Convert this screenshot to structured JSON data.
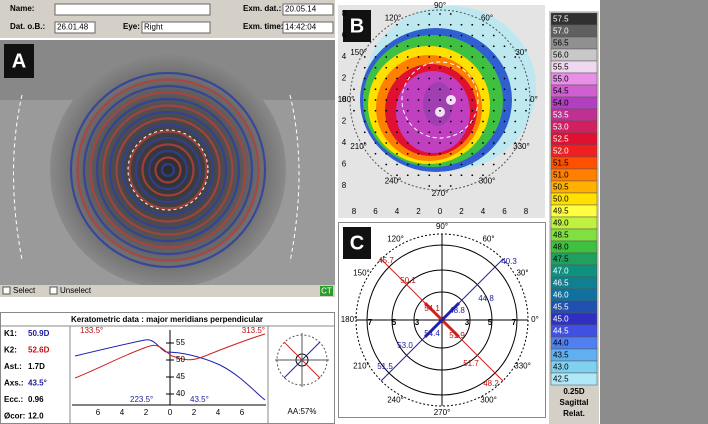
{
  "header": {
    "name_label": "Name:",
    "dob_label": "Dat. o.B.:",
    "dob": "26.01.48",
    "eye_label": "Eye:",
    "eye": "Right",
    "exam_date_label": "Exm. dat.:",
    "exam_date": "20.05.14",
    "exam_time_label": "Exm. time:",
    "exam_time": "14:42:04"
  },
  "image_panel": {
    "label": "A",
    "select": "Select",
    "unselect": "Unselect",
    "badge": "CT"
  },
  "keratometric": {
    "title": "Keratometric data : major meridians perpendicular",
    "rows": [
      {
        "label": "K1:",
        "value": "50.9D",
        "color": "#1a1aa0"
      },
      {
        "label": "K2:",
        "value": "52.6D",
        "color": "#c01010"
      },
      {
        "label": "Ast.:",
        "value": "1.7D",
        "color": "#000000"
      },
      {
        "label": "Axs.:",
        "value": "43.5°",
        "color": "#1a1aa0"
      },
      {
        "label": "Ecc.:",
        "value": "0.96",
        "color": "#000000"
      },
      {
        "label": "Øcor:",
        "value": "12.0",
        "color": "#000000"
      }
    ],
    "angle_top_left": "133.5°",
    "angle_top_right": "313.5°",
    "angle_bottom_left": "223.5°",
    "angle_bottom_right": "43.5°",
    "y_ticks": [
      "55",
      "50",
      "45",
      "40"
    ],
    "x_ticks": [
      "6",
      "4",
      "2",
      "0",
      "2",
      "4",
      "6"
    ],
    "aa": "AA:57%"
  },
  "map_b": {
    "label": "B",
    "axis_ticks": [
      "8",
      "6",
      "4",
      "2",
      "0",
      "2",
      "4",
      "6",
      "8"
    ],
    "angles": [
      "0°",
      "30°",
      "60°",
      "90°",
      "120°",
      "150°",
      "180°",
      "210°",
      "240°",
      "270°",
      "300°",
      "330°"
    ]
  },
  "map_c": {
    "label": "C",
    "angles": [
      "0°",
      "30°",
      "60°",
      "90°",
      "120°",
      "150°",
      "180°",
      "210°",
      "240°",
      "270°",
      "300°",
      "330°"
    ],
    "ring_labels": [
      "7",
      "5",
      "3",
      "3",
      "5",
      "7"
    ],
    "values": [
      {
        "text": "45.7",
        "color": "#c01010"
      },
      {
        "text": "50.1",
        "color": "#c01010"
      },
      {
        "text": "54.1",
        "color": "#c01010"
      },
      {
        "text": "48.8",
        "color": "#1a1aa0"
      },
      {
        "text": "44.8",
        "color": "#1a1aa0"
      },
      {
        "text": "40.3",
        "color": "#1a1aa0"
      },
      {
        "text": "54.4",
        "color": "#1a1aa0"
      },
      {
        "text": "51.9",
        "color": "#c01010"
      },
      {
        "text": "53.0",
        "color": "#1a1aa0"
      },
      {
        "text": "51.5",
        "color": "#1a1aa0"
      },
      {
        "text": "51.7",
        "color": "#c01010"
      },
      {
        "text": "48.2",
        "color": "#c01010"
      }
    ]
  },
  "scale": {
    "entries": [
      {
        "label": "57.5",
        "color": "#303030"
      },
      {
        "label": "57.0",
        "color": "#606060"
      },
      {
        "label": "56.5",
        "color": "#909090"
      },
      {
        "label": "56.0",
        "color": "#c8c8c8"
      },
      {
        "label": "55.5",
        "color": "#f0d8f0"
      },
      {
        "label": "55.0",
        "color": "#e890e8"
      },
      {
        "label": "54.5",
        "color": "#d060d0"
      },
      {
        "label": "54.0",
        "color": "#b040c0"
      },
      {
        "label": "53.5",
        "color": "#c03090"
      },
      {
        "label": "53.0",
        "color": "#d02060"
      },
      {
        "label": "52.5",
        "color": "#e01030"
      },
      {
        "label": "52.0",
        "color": "#f02020"
      },
      {
        "label": "51.5",
        "color": "#ff5000"
      },
      {
        "label": "51.0",
        "color": "#ff8000"
      },
      {
        "label": "50.5",
        "color": "#ffb000"
      },
      {
        "label": "50.0",
        "color": "#ffe000"
      },
      {
        "label": "49.5",
        "color": "#ffff40"
      },
      {
        "label": "49.0",
        "color": "#c0f040"
      },
      {
        "label": "48.5",
        "color": "#80e040"
      },
      {
        "label": "48.0",
        "color": "#40c040"
      },
      {
        "label": "47.5",
        "color": "#20a060"
      },
      {
        "label": "47.0",
        "color": "#109080"
      },
      {
        "label": "46.5",
        "color": "#108090"
      },
      {
        "label": "46.0",
        "color": "#1070a0"
      },
      {
        "label": "45.5",
        "color": "#2050b0"
      },
      {
        "label": "45.0",
        "color": "#3030c0"
      },
      {
        "label": "44.5",
        "color": "#4050e0"
      },
      {
        "label": "44.0",
        "color": "#5080f0"
      },
      {
        "label": "43.5",
        "color": "#60b0f0"
      },
      {
        "label": "43.0",
        "color": "#80d0f0"
      },
      {
        "label": "42.5",
        "color": "#b0e8f8"
      }
    ],
    "step": "0.25D",
    "mode": "Sagittal",
    "reference": "Relat."
  }
}
